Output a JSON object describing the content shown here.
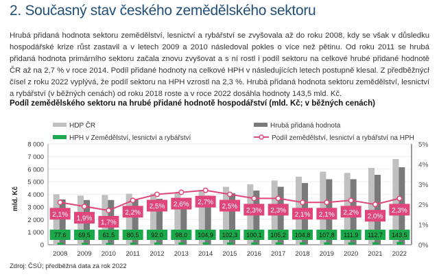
{
  "heading": "2.  Současný stav českého zemědělského sektoru",
  "paragraph_lines": [
    "Hrubá přidaná hodnota sektoru zemědělství, lesnictví a rybářství se zvyšovala až do roku 2008, kdy se však v důsledku",
    "hospodářské krize růst zastavil a v letech 2009 a 2010 následoval pokles o více než pětinu. Od roku 2011 se hrubá",
    "přidaná hodnota primárního sektoru začala znovu zvyšovat a s ní rostl i podíl sektoru na celkové hrubé přidané hodnotě",
    "ČR až na 2,7 % v roce 2014. Podíl přidané hodnoty na celkové HPH v následujících letech postupně klesal. Z předběžných",
    "čísel z roku 2022 vyplývá, že podíl sektoru na HPH vzrostl na 2,3 %. Hrubá přidaná hodnota sektoru zemědělství, lesnictví",
    "a rybářství (v běžných cenách) od roku 2018 roste a v roce 2022 dosáhla hodnoty 143,5 mld. Kč."
  ],
  "source": "Zdroj: ČSÚ; předběžná data za rok 2022",
  "chart_data": {
    "type": "bar",
    "title": "Podíl zemědělského sektoru na hrubé přidané hodnotě hospodářství (mld. Kč; v běžných cenách)",
    "ylabel": "mld. Kč",
    "ylim": [
      0,
      8000
    ],
    "y2lim": [
      0,
      5
    ],
    "yticks": [
      "0",
      "1 000",
      "2 000",
      "3 000",
      "4 000",
      "5 000",
      "6 000",
      "7 000",
      "8 000"
    ],
    "y2ticks": [
      "0%",
      "1%",
      "2%",
      "3%",
      "4%",
      "5%"
    ],
    "legend_position": "top",
    "categories": [
      "2008",
      "2009",
      "2010",
      "2011",
      "2012",
      "2013",
      "2014",
      "2015",
      "2016",
      "2017",
      "2018",
      "2019",
      "2020",
      "2021",
      "2022"
    ],
    "series": [
      {
        "name": "HDP ČR",
        "color": "#c0c0c0",
        "values": [
          4000,
          3900,
          3950,
          4050,
          4060,
          4100,
          4350,
          4600,
          4800,
          5100,
          5400,
          5800,
          5700,
          6100,
          6800
        ]
      },
      {
        "name": "Hrubá přidaná hodnota",
        "color": "#7a7a7a",
        "values": [
          3600,
          3550,
          3550,
          3600,
          3650,
          3700,
          3900,
          4100,
          4300,
          4600,
          4900,
          5200,
          5200,
          5550,
          6150
        ]
      },
      {
        "name": "HPH v Zemědělství, lesnictví a rybářství",
        "color": "#1aa84a",
        "values": [
          77.6,
          69.5,
          61.5,
          80.5,
          92.0,
          98.0,
          104.9,
          102.3,
          100.1,
          105.2,
          104.8,
          107.8,
          111.9,
          112.7,
          143.5
        ],
        "labels": [
          "77,6",
          "69,5",
          "61,5",
          "80,5",
          "92,0",
          "98,0",
          "104,9",
          "102,3",
          "100,1",
          "105,2",
          "104,8",
          "107,8",
          "111,9",
          "112,7",
          "143,5"
        ]
      },
      {
        "name": "Podíl zemědělství, lesnictví a rybářství na HPH",
        "color": "#e0457b",
        "axis": "right",
        "values": [
          2.1,
          1.9,
          1.7,
          2.2,
          2.5,
          2.6,
          2.7,
          2.5,
          2.3,
          2.3,
          2.1,
          2.1,
          2.2,
          2.0,
          2.3
        ],
        "labels": [
          "2,1%",
          "1,9%",
          "1,7%",
          "2,2%",
          "2,5%",
          "2,6%",
          "2,7%",
          "2,5%",
          "2,3%",
          "2,3%",
          "2,1%",
          "2,1%",
          "2,2%",
          "2,0%",
          "2,3%"
        ]
      }
    ]
  }
}
